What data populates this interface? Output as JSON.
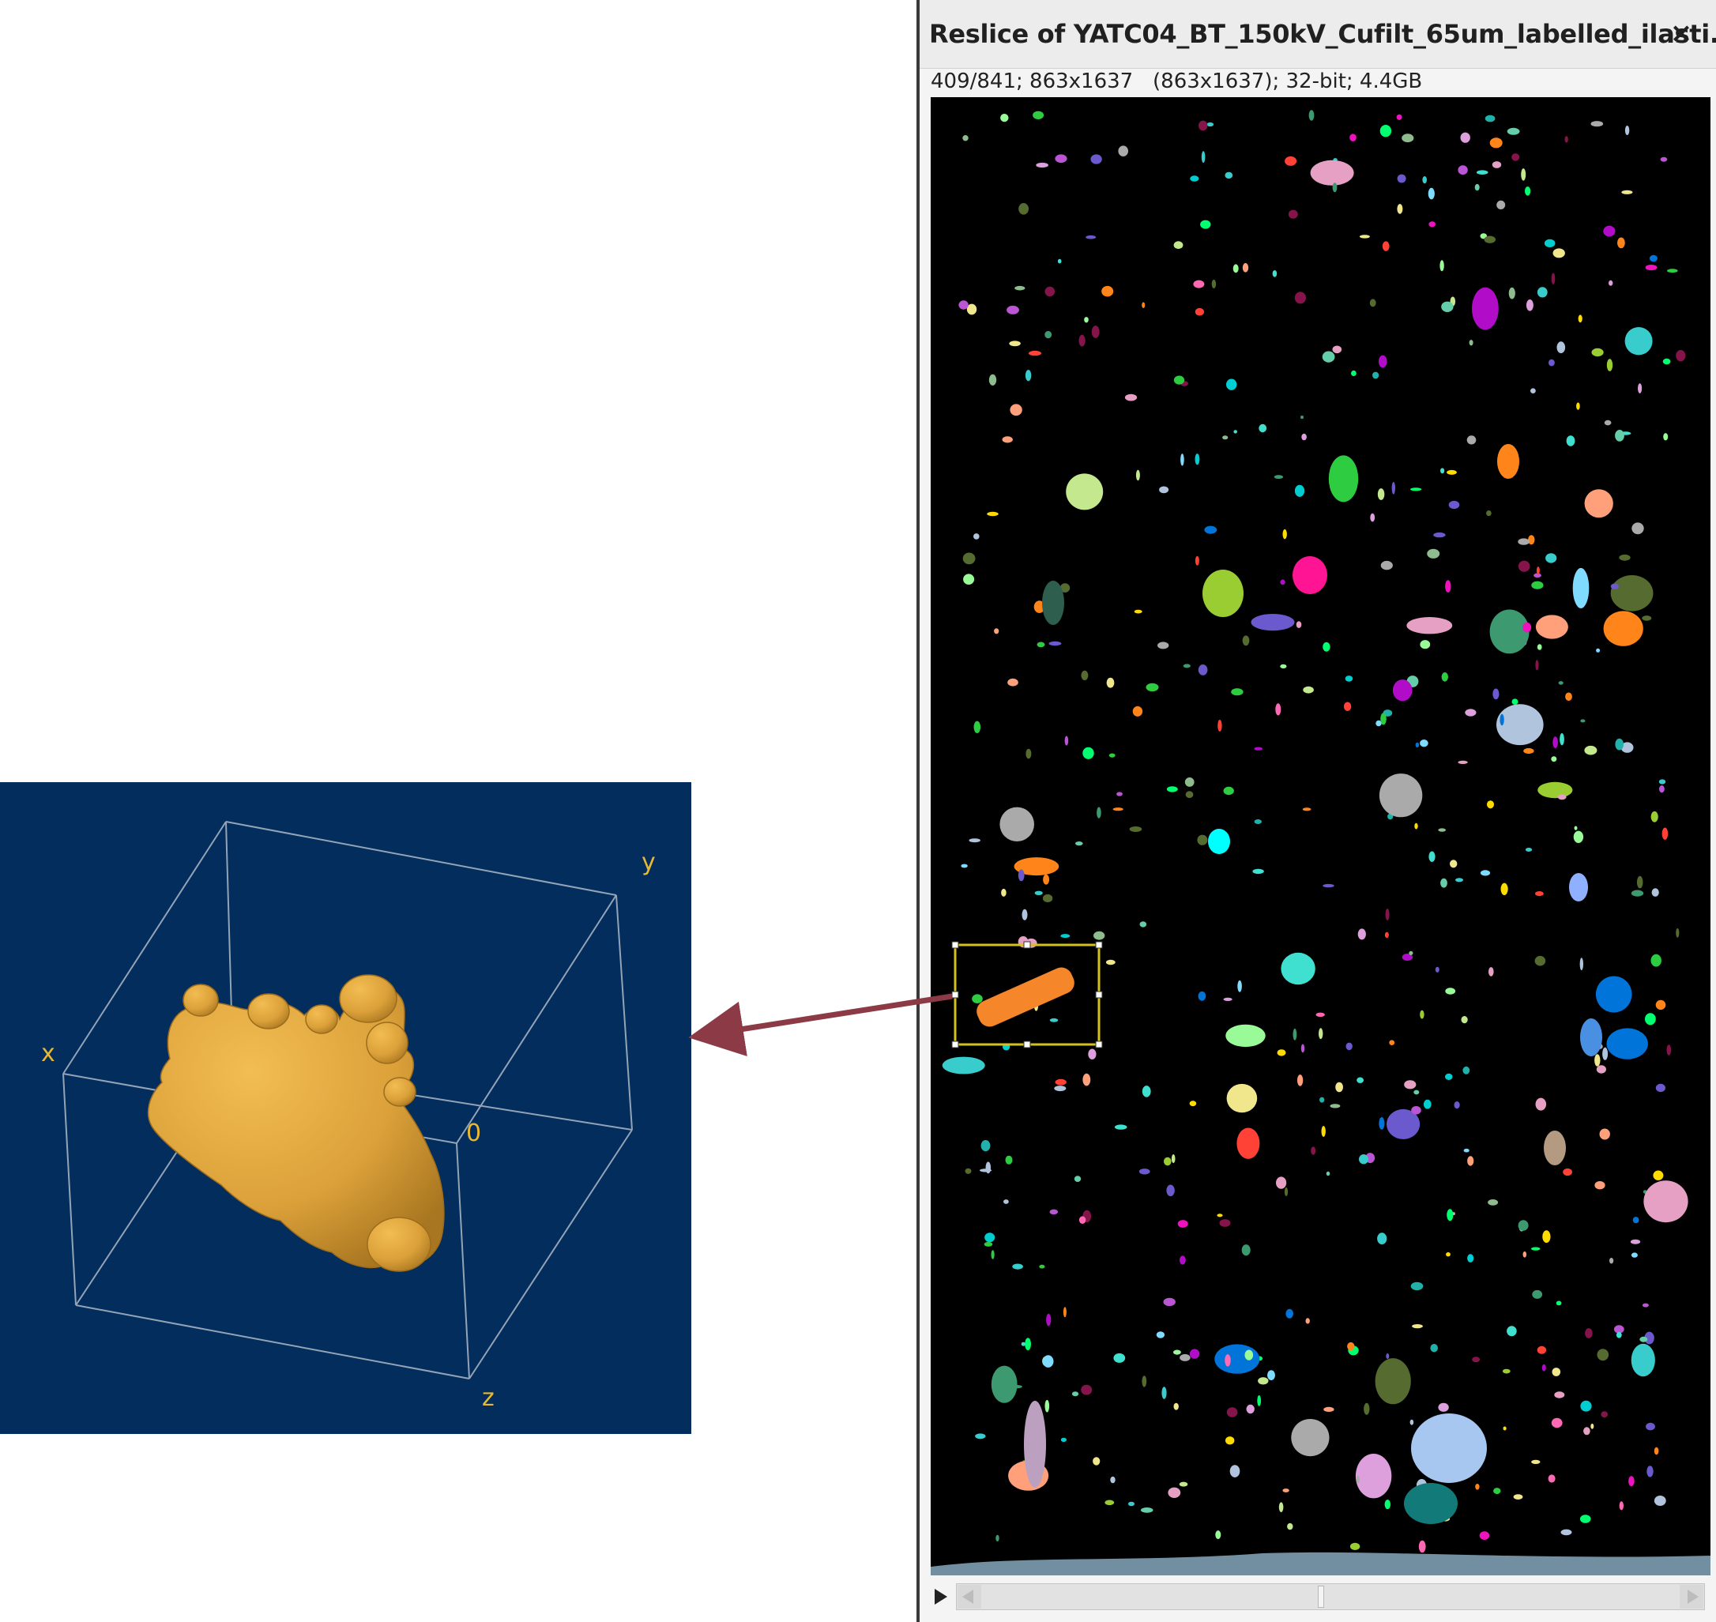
{
  "window": {
    "title": "Reslice of YATC04_BT_150kV_Cufilt_65um_labelled_ilasti...",
    "close_glyph": "×",
    "info_line": "409/841; 863x1637   (863x1637); 32-bit; 4.4GB"
  },
  "viewer3d": {
    "axes": {
      "x": "x",
      "y": "y",
      "z": "z",
      "origin": "0"
    },
    "background": "#022d5d",
    "object_color": "#e3a534",
    "label_color": "#e8b834"
  },
  "slice_view": {
    "background": "#000000",
    "roi_color": "#d4c21c",
    "selected_particle_color": "#f5862a"
  },
  "stack_slider": {
    "value": 409,
    "max": 841
  },
  "arrow": {
    "color": "#8b3a46"
  },
  "icons": {
    "play": "play-icon",
    "scroll_left": "scroll-left-arrow-icon",
    "scroll_right": "scroll-right-arrow-icon",
    "close": "close-icon"
  }
}
